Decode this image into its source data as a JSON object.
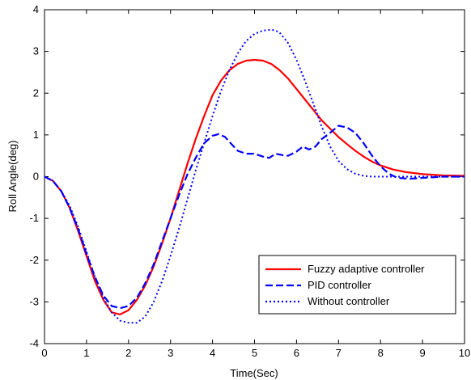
{
  "chart_data": {
    "type": "line",
    "title": "",
    "xlabel": "Time(Sec)",
    "ylabel": "Roll Angle(deg)",
    "xlim": [
      0,
      10
    ],
    "ylim": [
      -4,
      4
    ],
    "xticks": [
      0,
      1,
      2,
      3,
      4,
      5,
      6,
      7,
      8,
      9,
      10
    ],
    "yticks": [
      -4,
      -3,
      -2,
      -1,
      0,
      1,
      2,
      3,
      4
    ],
    "grid": false,
    "legend_position": "bottom-right",
    "series": [
      {
        "name": "Fuzzy adaptive controller",
        "color": "#ff0000",
        "style": "solid",
        "x": [
          0,
          0.2,
          0.4,
          0.6,
          0.8,
          1.0,
          1.2,
          1.4,
          1.6,
          1.8,
          2.0,
          2.2,
          2.4,
          2.6,
          2.8,
          3.0,
          3.2,
          3.4,
          3.6,
          3.8,
          4.0,
          4.2,
          4.4,
          4.6,
          4.8,
          5.0,
          5.2,
          5.4,
          5.6,
          5.8,
          6.0,
          6.2,
          6.4,
          6.6,
          6.8,
          7.0,
          7.2,
          7.4,
          7.6,
          7.8,
          8.0,
          8.3,
          8.6,
          9.0,
          9.5,
          10.0
        ],
        "y": [
          0,
          -0.1,
          -0.35,
          -0.75,
          -1.3,
          -1.9,
          -2.5,
          -2.95,
          -3.25,
          -3.3,
          -3.2,
          -2.95,
          -2.6,
          -2.15,
          -1.6,
          -1.0,
          -0.35,
          0.3,
          0.9,
          1.45,
          1.95,
          2.3,
          2.55,
          2.7,
          2.78,
          2.8,
          2.78,
          2.7,
          2.55,
          2.35,
          2.1,
          1.85,
          1.6,
          1.35,
          1.15,
          0.95,
          0.78,
          0.62,
          0.48,
          0.36,
          0.27,
          0.17,
          0.11,
          0.06,
          0.03,
          0.02
        ]
      },
      {
        "name": "PID controller",
        "color": "#0000ff",
        "style": "dashed",
        "x": [
          0,
          0.2,
          0.4,
          0.6,
          0.8,
          1.0,
          1.2,
          1.4,
          1.6,
          1.8,
          2.0,
          2.2,
          2.4,
          2.6,
          2.8,
          3.0,
          3.2,
          3.4,
          3.6,
          3.8,
          4.0,
          4.15,
          4.3,
          4.45,
          4.6,
          4.8,
          5.0,
          5.2,
          5.35,
          5.5,
          5.65,
          5.8,
          6.0,
          6.15,
          6.3,
          6.45,
          6.6,
          6.8,
          7.0,
          7.2,
          7.4,
          7.6,
          7.8,
          8.0,
          8.2,
          8.4,
          8.7,
          9.0,
          9.5,
          10.0
        ],
        "y": [
          0,
          -0.1,
          -0.35,
          -0.75,
          -1.25,
          -1.85,
          -2.4,
          -2.85,
          -3.1,
          -3.15,
          -3.1,
          -2.9,
          -2.55,
          -2.1,
          -1.55,
          -1.0,
          -0.45,
          0.05,
          0.45,
          0.8,
          0.98,
          1.02,
          0.95,
          0.78,
          0.62,
          0.55,
          0.55,
          0.48,
          0.45,
          0.55,
          0.52,
          0.5,
          0.6,
          0.72,
          0.65,
          0.72,
          0.9,
          1.05,
          1.22,
          1.18,
          1.05,
          0.8,
          0.5,
          0.25,
          0.07,
          -0.03,
          -0.05,
          -0.03,
          0.0,
          0.0
        ]
      },
      {
        "name": "Without controller",
        "color": "#0000ff",
        "style": "dotted",
        "x": [
          0,
          0.2,
          0.4,
          0.6,
          0.8,
          1.0,
          1.2,
          1.4,
          1.6,
          1.8,
          2.0,
          2.2,
          2.4,
          2.6,
          2.8,
          3.0,
          3.2,
          3.4,
          3.6,
          3.8,
          4.0,
          4.2,
          4.4,
          4.6,
          4.8,
          5.0,
          5.2,
          5.4,
          5.5,
          5.6,
          5.8,
          6.0,
          6.2,
          6.4,
          6.6,
          6.8,
          7.0,
          7.2,
          7.4,
          7.6,
          7.8,
          8.0,
          8.5,
          9.0,
          10.0
        ],
        "y": [
          0,
          -0.1,
          -0.35,
          -0.7,
          -1.2,
          -1.8,
          -2.4,
          -2.9,
          -3.25,
          -3.45,
          -3.5,
          -3.5,
          -3.35,
          -3.0,
          -2.5,
          -1.9,
          -1.25,
          -0.55,
          0.15,
          0.8,
          1.45,
          2.05,
          2.55,
          2.95,
          3.25,
          3.42,
          3.5,
          3.52,
          3.5,
          3.45,
          3.2,
          2.8,
          2.3,
          1.75,
          1.2,
          0.72,
          0.38,
          0.18,
          0.07,
          0.02,
          0.0,
          0.0,
          0.0,
          0.0,
          0.0
        ]
      }
    ]
  }
}
